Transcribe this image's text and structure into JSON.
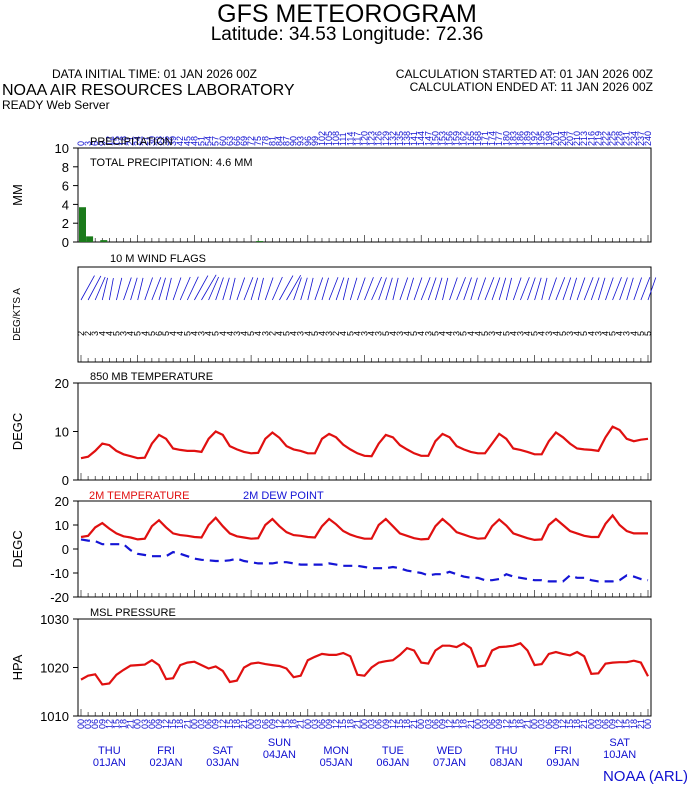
{
  "header": {
    "title": "GFS METEOROGRAM",
    "subtitle": "Latitude: 34.53 Longitude:  72.36",
    "lab": "NOAA AIR RESOURCES LABORATORY",
    "initial_time": "DATA INITIAL TIME: 01 JAN 2026 00Z",
    "calc_started": "CALCULATION STARTED AT: 01 JAN 2026 00Z",
    "calc_ended": "CALCULATION ENDED AT: 11 JAN 2026 00Z",
    "server": "READY Web Server",
    "credit": "NOAA (ARL)"
  },
  "chart_data": [
    {
      "type": "bar",
      "title": "PRECIPITATION",
      "annotation": "TOTAL PRECIPITATION:   4.6 MM",
      "ylabel": "MM",
      "ylim": [
        0,
        10
      ],
      "yticks": [
        0,
        2,
        4,
        6,
        8,
        10
      ],
      "x_hours": [
        0,
        3,
        6,
        9,
        12,
        15,
        18,
        21,
        24,
        27,
        30,
        33,
        36,
        39,
        42,
        45,
        48,
        51,
        54,
        57,
        60,
        63,
        66,
        69,
        72,
        75,
        78,
        81,
        84,
        87,
        90,
        93,
        96,
        99,
        102,
        105,
        108,
        111,
        114,
        117,
        120,
        123,
        126,
        129,
        132,
        135,
        138,
        141,
        144,
        147,
        150,
        153,
        156,
        159,
        162,
        165,
        168,
        171,
        174,
        177,
        180,
        183,
        186,
        189,
        192,
        195,
        198,
        201,
        204,
        207,
        210,
        213,
        216,
        219,
        222,
        225,
        228,
        231,
        234,
        237,
        240
      ],
      "values": [
        3.7,
        0.6,
        0,
        0.2,
        0,
        0,
        0,
        0,
        0,
        0,
        0,
        0,
        0,
        0,
        0,
        0,
        0,
        0,
        0,
        0,
        0,
        0,
        0,
        0,
        0,
        0.1,
        0,
        0,
        0,
        0,
        0,
        0,
        0,
        0,
        0,
        0,
        0,
        0,
        0,
        0,
        0,
        0,
        0,
        0,
        0,
        0,
        0,
        0,
        0,
        0,
        0,
        0,
        0,
        0,
        0,
        0,
        0,
        0,
        0,
        0,
        0,
        0,
        0,
        0,
        0,
        0,
        0,
        0,
        0,
        0,
        0,
        0,
        0,
        0,
        0,
        0,
        0,
        0,
        0,
        0,
        0
      ],
      "x_top_tick_labels": [
        "0",
        "3",
        "6",
        "9",
        "12",
        "15",
        "18",
        "21",
        "24",
        "27",
        "30",
        "33",
        "36",
        "39",
        "42",
        "45",
        "48",
        "51",
        "54",
        "57",
        "60",
        "63",
        "66",
        "69",
        "72",
        "75",
        "78",
        "81",
        "84",
        "87",
        "90",
        "93",
        "96",
        "99",
        "102",
        "105",
        "108",
        "111",
        "114",
        "117",
        "120",
        "123",
        "126",
        "129",
        "132",
        "135",
        "138",
        "141",
        "144",
        "147",
        "150",
        "153",
        "156",
        "159",
        "162",
        "165",
        "168",
        "171",
        "174",
        "177",
        "180",
        "183",
        "186",
        "189",
        "192",
        "195",
        "198",
        "201",
        "204",
        "207",
        "210",
        "213",
        "216",
        "219",
        "222",
        "225",
        "228",
        "231",
        "234",
        "237",
        "240"
      ],
      "color": "#1a7a1a"
    },
    {
      "type": "wind_barbs",
      "title": "10 M  WIND FLAGS",
      "ylabel": "DEG/KTS  A",
      "x_hours_step": 3,
      "speeds_kts": [
        2,
        2,
        3,
        4,
        4,
        5,
        3,
        4,
        5,
        4,
        5,
        6,
        5,
        4,
        4,
        5,
        4,
        3,
        4,
        5,
        4,
        4,
        3,
        4,
        5,
        4,
        3,
        2,
        4,
        5,
        4,
        3,
        4,
        5,
        4,
        3,
        2,
        4,
        5,
        4,
        3,
        4,
        3,
        5,
        4,
        3,
        4,
        5,
        4,
        3,
        5,
        4,
        4,
        3,
        5,
        4,
        4,
        5,
        3,
        4,
        5,
        4,
        3,
        4,
        5,
        4,
        3,
        4,
        5,
        3,
        4,
        5,
        4,
        3,
        4,
        5,
        4,
        3,
        4,
        5,
        5
      ],
      "directions_deg": [
        60,
        55,
        40,
        20,
        15,
        20,
        30,
        25,
        20,
        30,
        35,
        25,
        20,
        30,
        40,
        45,
        60,
        70,
        40,
        30,
        25,
        20,
        30,
        35,
        25,
        20,
        30,
        40,
        60,
        65,
        30,
        25,
        20,
        30,
        25,
        35,
        30,
        20,
        25,
        30,
        35,
        40,
        30,
        25,
        20,
        30,
        25,
        30,
        35,
        30,
        25,
        20,
        30,
        35,
        30,
        25,
        30,
        35,
        30,
        25,
        20,
        30,
        35,
        30,
        25,
        20,
        30,
        35,
        30,
        25,
        30,
        35,
        30,
        25,
        30,
        35,
        30,
        25,
        30,
        35,
        30
      ],
      "color": "#1010d0"
    },
    {
      "type": "line",
      "title": "850 MB  TEMPERATURE",
      "ylabel": "DEGC",
      "ylim": [
        0,
        20
      ],
      "yticks": [
        0,
        10,
        20
      ],
      "x_hours_step": 3,
      "series": [
        {
          "name": "850 MB  TEMPERATURE",
          "color": "#e01010",
          "values": [
            4.5,
            4.8,
            6,
            7.5,
            7.2,
            6,
            5.3,
            4.9,
            4.5,
            4.6,
            7.5,
            9.3,
            8.5,
            6.5,
            6.2,
            6,
            6,
            5.8,
            8.5,
            10,
            9.3,
            7,
            6.3,
            5.8,
            5.5,
            5.6,
            8.5,
            9.8,
            8.7,
            7,
            6.3,
            6,
            5.5,
            5.5,
            8.5,
            9.5,
            8.8,
            7.3,
            6.3,
            5.5,
            5,
            4.9,
            7.5,
            9.3,
            8.8,
            7.2,
            6.3,
            5.5,
            5,
            5,
            8,
            9.5,
            8.8,
            7,
            6.3,
            5.8,
            5.5,
            5.5,
            7.5,
            9.5,
            8.5,
            6.5,
            6.2,
            5.8,
            5.3,
            5.3,
            8,
            9.8,
            8.8,
            7.5,
            6.5,
            6.3,
            6.2,
            6,
            8.8,
            11,
            10.3,
            8.5,
            8,
            8.3,
            8.5
          ]
        }
      ]
    },
    {
      "type": "line",
      "ylabel": "DEGC",
      "ylim": [
        -20,
        20
      ],
      "yticks": [
        -20,
        -10,
        0,
        10,
        20
      ],
      "x_hours_step": 3,
      "series": [
        {
          "name": "2M TEMPERATURE",
          "color": "#e01010",
          "dash": false,
          "values": [
            5,
            5.5,
            9,
            10.8,
            8.5,
            6.5,
            5.3,
            4.8,
            4,
            4.3,
            9.5,
            12,
            9,
            6.5,
            5.8,
            5.5,
            5,
            4.8,
            10,
            13,
            9.5,
            6.5,
            5.3,
            4.8,
            4.3,
            4.5,
            10,
            12.5,
            9.5,
            7,
            5.8,
            5.5,
            5,
            4.8,
            9.5,
            12.5,
            10.3,
            7.5,
            6,
            5,
            4.3,
            4.3,
            10,
            12.5,
            9.5,
            6.5,
            5.5,
            4.5,
            4,
            4.2,
            9.5,
            12.5,
            10,
            7,
            6,
            5,
            4.3,
            4.5,
            9.5,
            12.3,
            9.8,
            6.5,
            5.5,
            4.5,
            3.8,
            4,
            10,
            12.5,
            10,
            7.5,
            6.5,
            5.5,
            5,
            5,
            10.5,
            14,
            10,
            7.5,
            6.5,
            6.5,
            6.5
          ]
        },
        {
          "name": "2M  DEW POINT",
          "color": "#1515d5",
          "dash": true,
          "values": [
            4,
            3.5,
            3.3,
            2,
            2,
            2,
            2,
            -0.5,
            -2,
            -2.5,
            -3,
            -3,
            -3,
            -1.3,
            -2,
            -3,
            -4,
            -4.5,
            -4.7,
            -5,
            -5,
            -4.7,
            -4,
            -5,
            -5.5,
            -6,
            -6,
            -6,
            -5.5,
            -5.5,
            -6,
            -6.5,
            -6.5,
            -6.5,
            -6.5,
            -6,
            -6.5,
            -7,
            -7,
            -7,
            -7.5,
            -8,
            -8,
            -8,
            -7.5,
            -8,
            -9,
            -9.5,
            -10,
            -11,
            -10.5,
            -10.5,
            -9.5,
            -10.5,
            -11.5,
            -12,
            -12,
            -13,
            -13,
            -12.5,
            -10.5,
            -11.5,
            -12,
            -12.5,
            -13,
            -13,
            -13.5,
            -13.5,
            -13.5,
            -11,
            -12,
            -12,
            -13,
            -13.5,
            -13.5,
            -13.5,
            -13,
            -11,
            -11.5,
            -12.5,
            -13
          ]
        }
      ]
    },
    {
      "type": "line",
      "title": "MSL PRESSURE",
      "ylabel": "HPA",
      "ylim": [
        1010,
        1030
      ],
      "yticks": [
        1010,
        1020,
        1030
      ],
      "x_hours_step": 3,
      "series": [
        {
          "name": "MSL PRESSURE",
          "color": "#e01010",
          "values": [
            1017.5,
            1018.3,
            1018.6,
            1016.5,
            1016.7,
            1018.5,
            1019.5,
            1020.4,
            1020.5,
            1020.6,
            1021.5,
            1020.5,
            1017.6,
            1017.8,
            1020.5,
            1021,
            1021.2,
            1020.5,
            1019.8,
            1020.2,
            1019.3,
            1017,
            1017.3,
            1020,
            1020.8,
            1021,
            1020.7,
            1020.5,
            1020.3,
            1019.8,
            1018,
            1018.3,
            1021.5,
            1022.2,
            1022.8,
            1022.6,
            1022.6,
            1023,
            1022.3,
            1018.5,
            1018.3,
            1020,
            1021,
            1021.3,
            1021.5,
            1022.6,
            1024,
            1023.5,
            1021,
            1020.8,
            1023.5,
            1024.5,
            1024.5,
            1024.2,
            1025,
            1024,
            1020.2,
            1020.4,
            1023.5,
            1024.2,
            1024.3,
            1024.5,
            1025,
            1023.5,
            1020.5,
            1020.7,
            1022.8,
            1023.2,
            1022.8,
            1022.5,
            1023.2,
            1022.3,
            1018.7,
            1018.8,
            1020.8,
            1021,
            1021.1,
            1021.1,
            1021.4,
            1021,
            1018.2
          ]
        }
      ]
    }
  ],
  "x_axis": {
    "hour_tick_labels": [
      "00",
      "03",
      "06",
      "09",
      "12",
      "15",
      "18",
      "21"
    ],
    "days": [
      {
        "weekday": "THU",
        "date": "01JAN"
      },
      {
        "weekday": "FRI",
        "date": "02JAN"
      },
      {
        "weekday": "SAT",
        "date": "03JAN"
      },
      {
        "weekday": "SUN",
        "date": "04JAN"
      },
      {
        "weekday": "MON",
        "date": "05JAN"
      },
      {
        "weekday": "TUE",
        "date": "06JAN"
      },
      {
        "weekday": "WED",
        "date": "07JAN"
      },
      {
        "weekday": "THU",
        "date": "08JAN"
      },
      {
        "weekday": "FRI",
        "date": "09JAN"
      },
      {
        "weekday": "SAT",
        "date": "10JAN"
      }
    ]
  },
  "legend": {
    "temp_label": "2M TEMPERATURE",
    "temp_color": "#e01010",
    "dew_label": "2M  DEW POINT",
    "dew_color": "#1515d5"
  }
}
